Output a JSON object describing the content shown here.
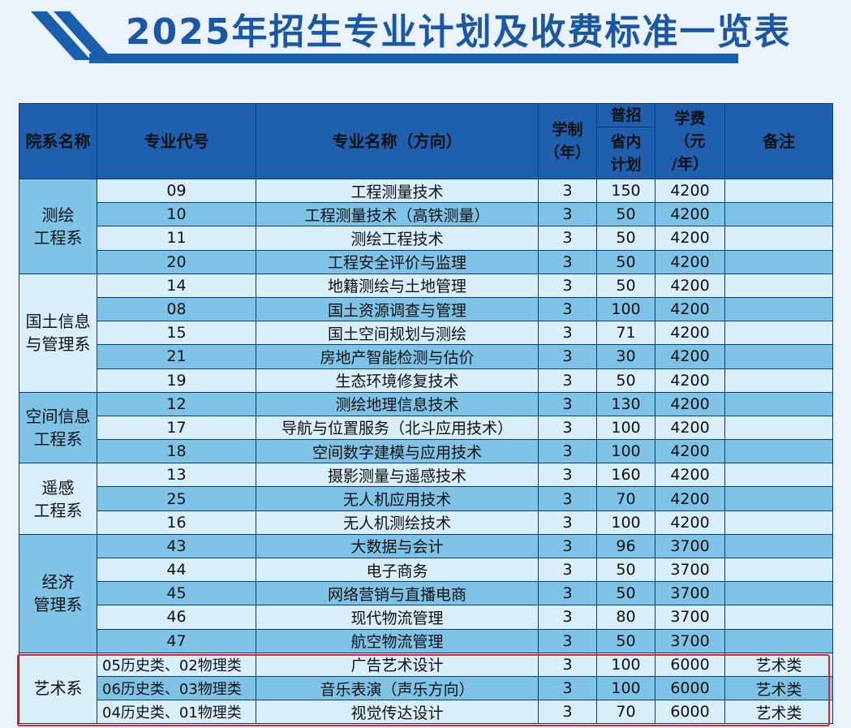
{
  "title": "2025年招生专业计划及收费标准一览表",
  "colors": {
    "header_bg": "#1e5fae",
    "row_dark": "#7ec3e6",
    "row_light": "#d8eef9",
    "border": "#0b3a7a",
    "highlight": "#e0262b"
  },
  "headers": {
    "dept": "院系名称",
    "code": "专业代号",
    "name": "专业名称（方向）",
    "years_line1": "学制",
    "years_line2": "（年）",
    "plan_top": "普招",
    "plan_line1": "省内",
    "plan_line2": "计划",
    "fee_line1": "学费",
    "fee_line2": "（元",
    "fee_line3": "/年）",
    "note": "备注"
  },
  "departments": [
    {
      "name": "测绘工程系",
      "name_l1": "测绘",
      "name_l2": "工程系",
      "rows": [
        {
          "code": "09",
          "name": "工程测量技术",
          "years": "3",
          "plan": "150",
          "fee": "4200",
          "note": ""
        },
        {
          "code": "10",
          "name": "工程测量技术（高铁测量）",
          "years": "3",
          "plan": "50",
          "fee": "4200",
          "note": ""
        },
        {
          "code": "11",
          "name": "测绘工程技术",
          "years": "3",
          "plan": "50",
          "fee": "4200",
          "note": ""
        },
        {
          "code": "20",
          "name": "工程安全评价与监理",
          "years": "3",
          "plan": "50",
          "fee": "4200",
          "note": ""
        }
      ]
    },
    {
      "name": "国土信息与管理系",
      "name_l1": "国土信息",
      "name_l2": "与管理系",
      "rows": [
        {
          "code": "14",
          "name": "地籍测绘与土地管理",
          "years": "3",
          "plan": "50",
          "fee": "4200",
          "note": ""
        },
        {
          "code": "08",
          "name": "国土资源调查与管理",
          "years": "3",
          "plan": "100",
          "fee": "4200",
          "note": ""
        },
        {
          "code": "15",
          "name": "国土空间规划与测绘",
          "years": "3",
          "plan": "71",
          "fee": "4200",
          "note": ""
        },
        {
          "code": "21",
          "name": "房地产智能检测与估价",
          "years": "3",
          "plan": "30",
          "fee": "4200",
          "note": ""
        },
        {
          "code": "19",
          "name": "生态环境修复技术",
          "years": "3",
          "plan": "50",
          "fee": "4200",
          "note": ""
        }
      ]
    },
    {
      "name": "空间信息工程系",
      "name_l1": "空间信息",
      "name_l2": "工程系",
      "rows": [
        {
          "code": "12",
          "name": "测绘地理信息技术",
          "years": "3",
          "plan": "130",
          "fee": "4200",
          "note": ""
        },
        {
          "code": "17",
          "name": "导航与位置服务（北斗应用技术）",
          "years": "3",
          "plan": "100",
          "fee": "4200",
          "note": ""
        },
        {
          "code": "18",
          "name": "空间数字建模与应用技术",
          "years": "3",
          "plan": "100",
          "fee": "4200",
          "note": ""
        }
      ]
    },
    {
      "name": "遥感工程系",
      "name_l1": "遥感",
      "name_l2": "工程系",
      "rows": [
        {
          "code": "13",
          "name": "摄影测量与遥感技术",
          "years": "3",
          "plan": "160",
          "fee": "4200",
          "note": ""
        },
        {
          "code": "25",
          "name": "无人机应用技术",
          "years": "3",
          "plan": "70",
          "fee": "4200",
          "note": ""
        },
        {
          "code": "16",
          "name": "无人机测绘技术",
          "years": "3",
          "plan": "100",
          "fee": "4200",
          "note": ""
        }
      ]
    },
    {
      "name": "经济管理系",
      "name_l1": "经济",
      "name_l2": "管理系",
      "rows": [
        {
          "code": "43",
          "name": "大数据与会计",
          "years": "3",
          "plan": "96",
          "fee": "3700",
          "note": ""
        },
        {
          "code": "44",
          "name": "电子商务",
          "years": "3",
          "plan": "50",
          "fee": "3700",
          "note": ""
        },
        {
          "code": "45",
          "name": "网络营销与直播电商",
          "years": "3",
          "plan": "50",
          "fee": "3700",
          "note": ""
        },
        {
          "code": "46",
          "name": "现代物流管理",
          "years": "3",
          "plan": "80",
          "fee": "3700",
          "note": ""
        },
        {
          "code": "47",
          "name": "航空物流管理",
          "years": "3",
          "plan": "50",
          "fee": "3700",
          "note": ""
        }
      ]
    },
    {
      "name": "艺术系",
      "name_l1": "艺术系",
      "name_l2": "",
      "rows": [
        {
          "code": "05历史类、02物理类",
          "name": "广告艺术设计",
          "years": "3",
          "plan": "100",
          "fee": "6000",
          "note": "艺术类"
        },
        {
          "code": "06历史类、03物理类",
          "name": "音乐表演（声乐方向）",
          "years": "3",
          "plan": "100",
          "fee": "6000",
          "note": "艺术类"
        },
        {
          "code": "04历史类、01物理类",
          "name": "视觉传达设计",
          "years": "3",
          "plan": "70",
          "fee": "6000",
          "note": "艺术类"
        }
      ]
    }
  ]
}
